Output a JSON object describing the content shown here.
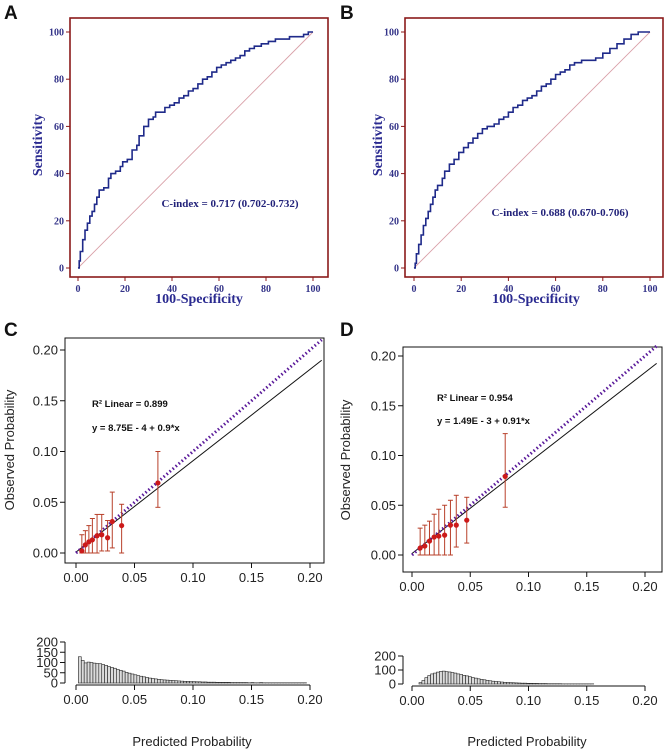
{
  "panel_labels": [
    "A",
    "B",
    "C",
    "D"
  ],
  "colors": {
    "roc_frame": "#8b1a1a",
    "roc_curve": "#1f2a8a",
    "roc_diag": "#d9a0a8",
    "roc_text": "#2a2a90",
    "cal_ideal": "#5a1a9a",
    "cal_point": "#cc1a1a",
    "cal_error": "#b8402a",
    "hist_bar": "#222222"
  },
  "chart_data": [
    {
      "id": "A",
      "type": "line",
      "subtype": "roc",
      "xlabel": "100-Specificity",
      "ylabel": "Sensitivity",
      "xlim": [
        0,
        100
      ],
      "ylim": [
        0,
        100
      ],
      "xticks": [
        "0",
        "20",
        "40",
        "60",
        "80",
        "100"
      ],
      "yticks": [
        "0",
        "20",
        "40",
        "60",
        "80",
        "100"
      ],
      "annotation": "C-index = 0.717 (0.702-0.732)",
      "curve": [
        [
          0,
          0
        ],
        [
          0.5,
          3
        ],
        [
          1,
          7
        ],
        [
          2,
          12
        ],
        [
          3,
          16
        ],
        [
          4,
          19
        ],
        [
          5,
          22
        ],
        [
          6,
          24
        ],
        [
          7,
          27
        ],
        [
          8,
          30
        ],
        [
          9,
          33
        ],
        [
          11,
          34
        ],
        [
          13,
          38
        ],
        [
          14,
          40
        ],
        [
          16,
          41
        ],
        [
          18,
          43
        ],
        [
          19,
          45
        ],
        [
          21,
          46
        ],
        [
          23,
          50
        ],
        [
          25,
          52
        ],
        [
          26,
          56
        ],
        [
          28,
          60
        ],
        [
          30,
          63
        ],
        [
          32,
          64
        ],
        [
          33,
          66
        ],
        [
          35,
          66
        ],
        [
          37,
          68
        ],
        [
          39,
          69
        ],
        [
          41,
          70
        ],
        [
          43,
          72
        ],
        [
          45,
          73
        ],
        [
          47,
          75
        ],
        [
          49,
          76
        ],
        [
          51,
          78
        ],
        [
          53,
          80
        ],
        [
          55,
          81
        ],
        [
          57,
          83
        ],
        [
          59,
          85
        ],
        [
          61,
          86
        ],
        [
          63,
          87
        ],
        [
          65,
          88
        ],
        [
          67,
          89
        ],
        [
          69,
          90
        ],
        [
          71,
          92
        ],
        [
          73,
          93
        ],
        [
          75,
          94
        ],
        [
          78,
          95
        ],
        [
          81,
          96
        ],
        [
          84,
          97
        ],
        [
          87,
          97
        ],
        [
          90,
          98
        ],
        [
          93,
          98
        ],
        [
          96,
          99
        ],
        [
          98,
          100
        ],
        [
          100,
          100
        ]
      ]
    },
    {
      "id": "B",
      "type": "line",
      "subtype": "roc",
      "xlabel": "100-Specificity",
      "ylabel": "Sensitivity",
      "xlim": [
        0,
        100
      ],
      "ylim": [
        0,
        100
      ],
      "xticks": [
        "0",
        "20",
        "40",
        "60",
        "80",
        "100"
      ],
      "yticks": [
        "0",
        "20",
        "40",
        "60",
        "80",
        "100"
      ],
      "annotation": "C-index = 0.688 (0.670-0.706)",
      "curve": [
        [
          0,
          0
        ],
        [
          0.5,
          2
        ],
        [
          1,
          6
        ],
        [
          2,
          10
        ],
        [
          3,
          14
        ],
        [
          4,
          18
        ],
        [
          5,
          21
        ],
        [
          6,
          24
        ],
        [
          7,
          27
        ],
        [
          8,
          30
        ],
        [
          9,
          33
        ],
        [
          10,
          35
        ],
        [
          12,
          38
        ],
        [
          13,
          41
        ],
        [
          15,
          44
        ],
        [
          17,
          46
        ],
        [
          19,
          49
        ],
        [
          21,
          51
        ],
        [
          23,
          53
        ],
        [
          25,
          55
        ],
        [
          27,
          57
        ],
        [
          29,
          59
        ],
        [
          31,
          60
        ],
        [
          34,
          61
        ],
        [
          36,
          63
        ],
        [
          38,
          64
        ],
        [
          40,
          66
        ],
        [
          42,
          68
        ],
        [
          44,
          69
        ],
        [
          46,
          71
        ],
        [
          48,
          72
        ],
        [
          50,
          73
        ],
        [
          52,
          75
        ],
        [
          54,
          77
        ],
        [
          56,
          78
        ],
        [
          58,
          80
        ],
        [
          60,
          82
        ],
        [
          62,
          83
        ],
        [
          64,
          84
        ],
        [
          66,
          86
        ],
        [
          68,
          87
        ],
        [
          71,
          88
        ],
        [
          74,
          88
        ],
        [
          77,
          89
        ],
        [
          80,
          91
        ],
        [
          83,
          93
        ],
        [
          86,
          95
        ],
        [
          89,
          97
        ],
        [
          92,
          99
        ],
        [
          95,
          100
        ],
        [
          100,
          100
        ]
      ]
    },
    {
      "id": "C",
      "type": "scatter",
      "subtype": "calibration",
      "xlabel": "Predicted Probability",
      "ylabel": "Observed Probability",
      "xlim": [
        0,
        0.21
      ],
      "ylim": [
        0,
        0.21
      ],
      "xticks": [
        "0.00",
        "0.05",
        "0.10",
        "0.15",
        "0.20"
      ],
      "yticks": [
        "0.00",
        "0.05",
        "0.10",
        "0.15",
        "0.20"
      ],
      "r2_text": "R² Linear = 0.899",
      "equation_text": "y = 8.75E - 4 + 0.9*x",
      "fit": {
        "intercept": 0.000875,
        "slope": 0.9
      },
      "points": [
        {
          "x": 0.005,
          "y": 0.002,
          "lo": 0.0,
          "hi": 0.018
        },
        {
          "x": 0.008,
          "y": 0.008,
          "lo": 0.0,
          "hi": 0.022
        },
        {
          "x": 0.011,
          "y": 0.011,
          "lo": 0.0,
          "hi": 0.027
        },
        {
          "x": 0.014,
          "y": 0.013,
          "lo": 0.0,
          "hi": 0.034
        },
        {
          "x": 0.018,
          "y": 0.017,
          "lo": 0.0,
          "hi": 0.038
        },
        {
          "x": 0.022,
          "y": 0.018,
          "lo": 0.002,
          "hi": 0.038
        },
        {
          "x": 0.027,
          "y": 0.015,
          "lo": 0.002,
          "hi": 0.032
        },
        {
          "x": 0.031,
          "y": 0.031,
          "lo": 0.005,
          "hi": 0.06
        },
        {
          "x": 0.039,
          "y": 0.027,
          "lo": 0.0,
          "hi": 0.048
        },
        {
          "x": 0.07,
          "y": 0.069,
          "lo": 0.045,
          "hi": 0.1
        }
      ],
      "hist": {
        "yticks": [
          "0",
          "50",
          "100",
          "150",
          "200"
        ],
        "ylim": [
          0,
          200
        ],
        "bin_width": 0.0025,
        "start": 0.002,
        "counts": [
          128,
          110,
          98,
          102,
          100,
          97,
          95,
          94,
          90,
          86,
          80,
          76,
          72,
          66,
          62,
          58,
          52,
          48,
          44,
          40,
          36,
          33,
          30,
          27,
          24,
          22,
          20,
          18,
          16,
          15,
          14,
          13,
          12,
          11,
          10,
          9,
          8,
          8,
          7,
          7,
          6,
          6,
          5,
          5,
          4,
          4,
          4,
          3,
          3,
          3,
          3,
          3,
          2,
          2,
          2,
          2,
          2,
          2,
          1,
          2,
          1,
          1,
          2,
          1,
          1,
          1,
          1,
          1,
          1,
          1,
          1,
          1,
          1,
          1,
          1,
          1,
          1,
          1
        ]
      }
    },
    {
      "id": "D",
      "type": "scatter",
      "subtype": "calibration",
      "xlabel": "Predicted Probability",
      "ylabel": "Observed Probability",
      "xlim": [
        0,
        0.21
      ],
      "ylim": [
        0,
        0.21
      ],
      "xticks": [
        "0.00",
        "0.05",
        "0.10",
        "0.15",
        "0.20"
      ],
      "yticks": [
        "0.00",
        "0.05",
        "0.10",
        "0.15",
        "0.20"
      ],
      "r2_text": "R² Linear = 0.954",
      "equation_text": "y = 1.49E - 3 + 0.91*x",
      "fit": {
        "intercept": 0.00149,
        "slope": 0.91
      },
      "points": [
        {
          "x": 0.007,
          "y": 0.007,
          "lo": 0.0,
          "hi": 0.027
        },
        {
          "x": 0.011,
          "y": 0.009,
          "lo": 0.0,
          "hi": 0.03
        },
        {
          "x": 0.015,
          "y": 0.014,
          "lo": 0.0,
          "hi": 0.034
        },
        {
          "x": 0.019,
          "y": 0.018,
          "lo": 0.0,
          "hi": 0.041
        },
        {
          "x": 0.023,
          "y": 0.019,
          "lo": 0.0,
          "hi": 0.046
        },
        {
          "x": 0.028,
          "y": 0.02,
          "lo": 0.0,
          "hi": 0.05
        },
        {
          "x": 0.033,
          "y": 0.03,
          "lo": 0.0,
          "hi": 0.055
        },
        {
          "x": 0.038,
          "y": 0.03,
          "lo": 0.008,
          "hi": 0.06
        },
        {
          "x": 0.047,
          "y": 0.035,
          "lo": 0.012,
          "hi": 0.058
        },
        {
          "x": 0.08,
          "y": 0.079,
          "lo": 0.048,
          "hi": 0.122
        }
      ],
      "hist": {
        "yticks": [
          "0",
          "100",
          "200"
        ],
        "ylim": [
          0,
          200
        ],
        "bin_width": 0.0025,
        "start": 0.006,
        "counts": [
          10,
          25,
          45,
          60,
          72,
          78,
          85,
          90,
          92,
          88,
          86,
          82,
          78,
          72,
          68,
          62,
          58,
          52,
          46,
          42,
          37,
          33,
          30,
          26,
          23,
          20,
          18,
          16,
          14,
          12,
          11,
          10,
          9,
          8,
          7,
          6,
          6,
          5,
          5,
          4,
          4,
          3,
          3,
          3,
          2,
          2,
          2,
          2,
          2,
          1,
          1,
          1,
          1,
          1,
          1,
          1,
          1,
          1,
          1,
          1
        ]
      }
    }
  ]
}
